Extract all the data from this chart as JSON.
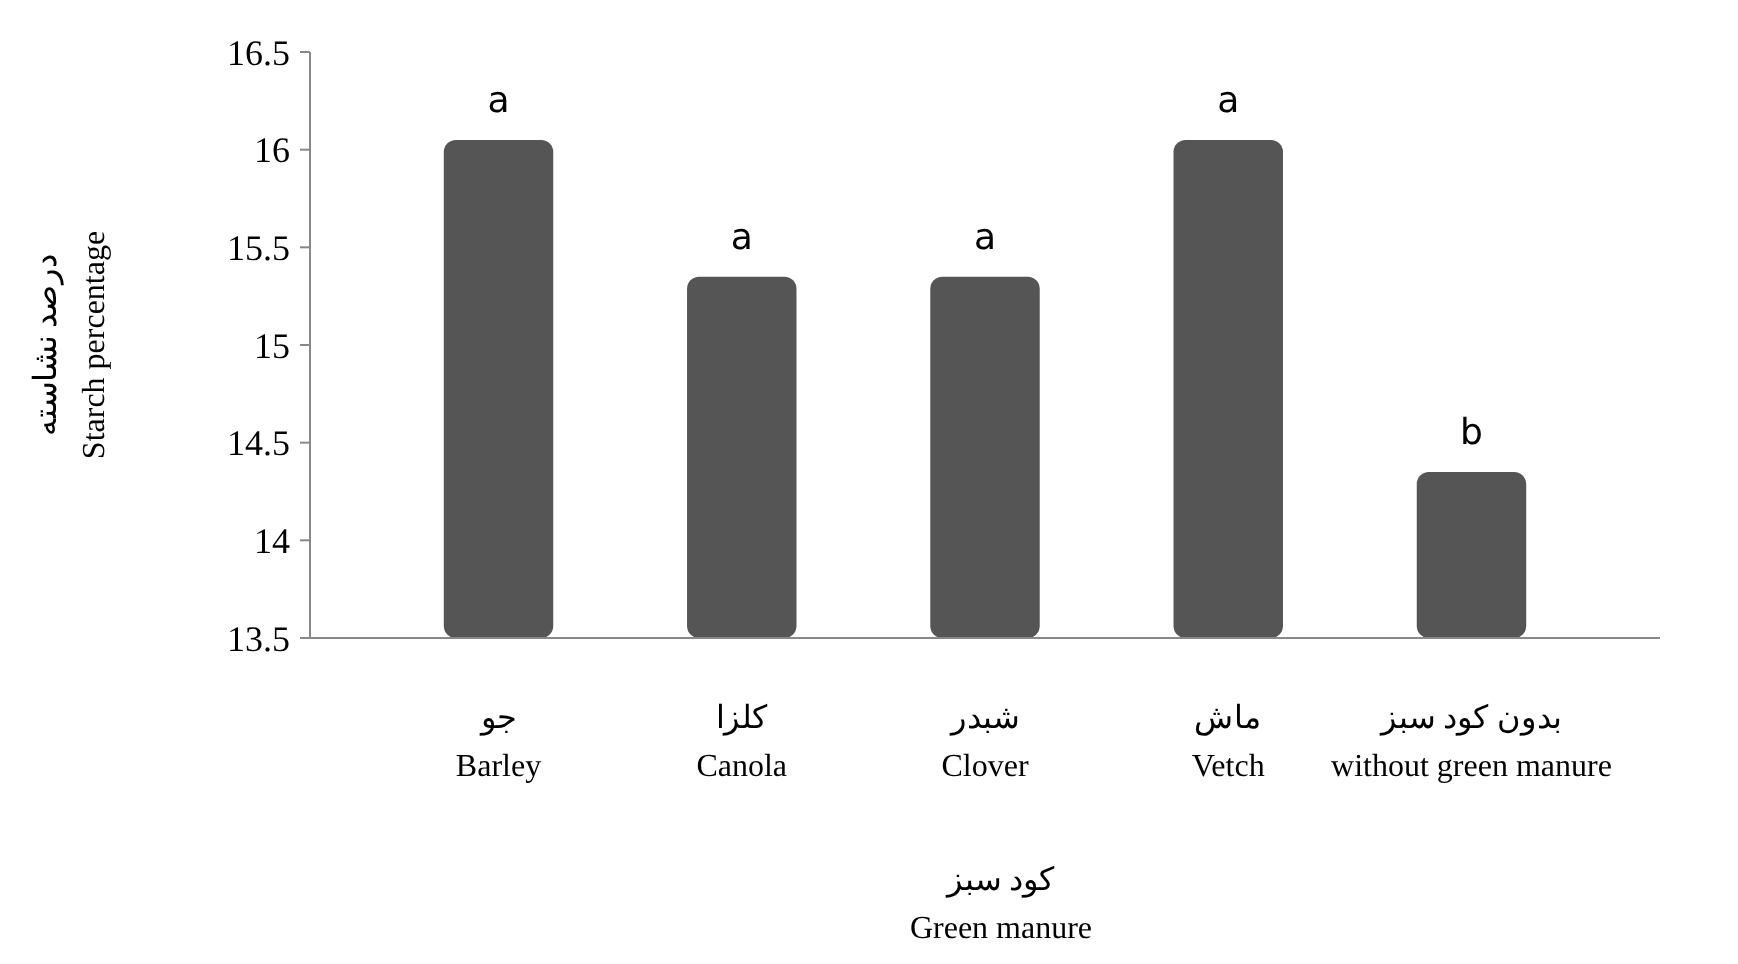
{
  "chart_data": {
    "type": "bar",
    "categories": [
      "جو\nBarley",
      "کلزا\nCanola",
      "شبدر\nClover",
      "ماش\nVetch",
      "بدون کود سبز\nwithout green manure"
    ],
    "values": [
      16.05,
      15.35,
      15.35,
      16.05,
      14.35
    ],
    "color": "#555555",
    "ylim": [
      13.5,
      16.5
    ],
    "yticks": [
      13.5,
      14,
      14.5,
      15,
      15.5,
      16,
      16.5
    ],
    "xlabel": "کود سبز\nGreen manure",
    "ylabel": "درصد نشاسته\nStarch percentage",
    "annotations": [
      {
        "text": "a",
        "x": "جو\nBarley",
        "y": 16.05
      },
      {
        "text": "a",
        "x": "کلزا\nCanola",
        "y": 15.35
      },
      {
        "text": "a",
        "x": "شبدر\nClover",
        "y": 15.35
      },
      {
        "text": "a",
        "x": "ماش\nVetch",
        "y": 16.05
      },
      {
        "text": "b",
        "x": "بدون کود سبز\nwithout green manure",
        "y": 14.35
      }
    ],
    "grid": false
  }
}
